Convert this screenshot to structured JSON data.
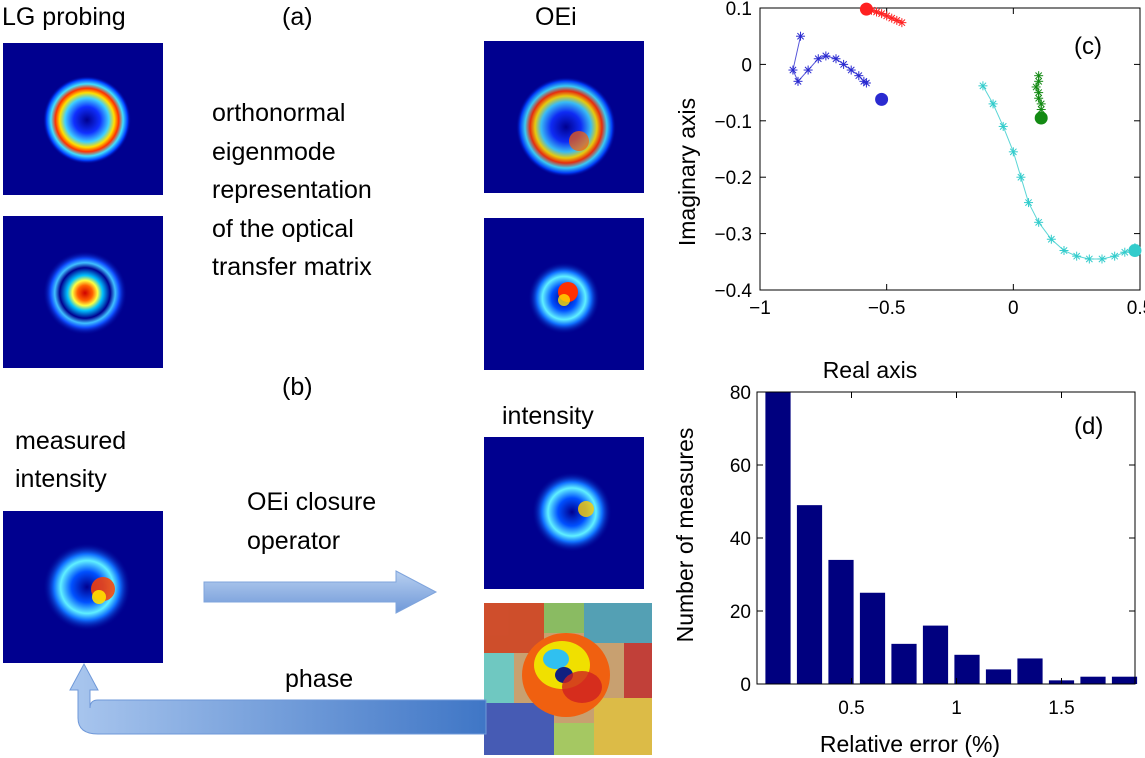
{
  "panel_a": {
    "tag": "(a)",
    "left_title": "LG probing",
    "right_title": "OEi",
    "description": [
      "orthonormal",
      "eigenmode",
      "representation",
      "of the optical",
      "transfer matrix"
    ]
  },
  "panel_b": {
    "tag": "(b)",
    "measured_label": [
      "measured",
      "intensity"
    ],
    "operator_label": [
      "OEi closure",
      "operator"
    ],
    "intensity_label": "intensity",
    "phase_label": "phase"
  },
  "chart_data": [
    {
      "panel": "(c)",
      "type": "scatter",
      "xlabel": "Real axis",
      "ylabel": "Imaginary axis",
      "xlim": [
        -1,
        0.5
      ],
      "ylim": [
        -0.4,
        0.1
      ],
      "xticks": [
        "−1",
        "−0.5",
        "0",
        "0.5"
      ],
      "yticks": [
        "0.1",
        "0",
        "−0.1",
        "−0.2",
        "−0.3",
        "−0.4"
      ],
      "series": [
        {
          "name": "red",
          "color": "#ff2020",
          "points": [
            [
              -0.58,
              0.098
            ],
            [
              -0.56,
              0.096
            ],
            [
              -0.54,
              0.093
            ],
            [
              -0.52,
              0.09
            ],
            [
              -0.5,
              0.086
            ],
            [
              -0.48,
              0.082
            ],
            [
              -0.46,
              0.078
            ],
            [
              -0.44,
              0.074
            ]
          ],
          "end_point": [
            -0.58,
            0.098
          ]
        },
        {
          "name": "blue",
          "color": "#2a2ad0",
          "points": [
            [
              -0.84,
              0.05
            ],
            [
              -0.87,
              -0.01
            ],
            [
              -0.85,
              -0.03
            ],
            [
              -0.81,
              -0.01
            ],
            [
              -0.77,
              0.01
            ],
            [
              -0.74,
              0.015
            ],
            [
              -0.7,
              0.01
            ],
            [
              -0.67,
              0.0
            ],
            [
              -0.64,
              -0.01
            ],
            [
              -0.61,
              -0.02
            ],
            [
              -0.59,
              -0.03
            ],
            [
              -0.58,
              -0.033
            ]
          ],
          "end_point": [
            -0.52,
            -0.062
          ]
        },
        {
          "name": "green",
          "color": "#138a13",
          "points": [
            [
              0.1,
              -0.02
            ],
            [
              0.1,
              -0.03
            ],
            [
              0.09,
              -0.04
            ],
            [
              0.1,
              -0.05
            ],
            [
              0.1,
              -0.06
            ],
            [
              0.11,
              -0.07
            ],
            [
              0.11,
              -0.08
            ]
          ],
          "end_point": [
            0.11,
            -0.095
          ]
        },
        {
          "name": "cyan",
          "color": "#33cccc",
          "points": [
            [
              -0.12,
              -0.038
            ],
            [
              -0.08,
              -0.07
            ],
            [
              -0.04,
              -0.11
            ],
            [
              0.0,
              -0.155
            ],
            [
              0.03,
              -0.2
            ],
            [
              0.06,
              -0.245
            ],
            [
              0.1,
              -0.28
            ],
            [
              0.15,
              -0.31
            ],
            [
              0.2,
              -0.33
            ],
            [
              0.25,
              -0.34
            ],
            [
              0.3,
              -0.345
            ],
            [
              0.35,
              -0.345
            ],
            [
              0.4,
              -0.34
            ],
            [
              0.44,
              -0.333
            ],
            [
              0.48,
              -0.325
            ]
          ],
          "end_point": [
            0.48,
            -0.33
          ]
        }
      ]
    },
    {
      "panel": "(d)",
      "type": "bar",
      "xlabel": "Relative error (%)",
      "ylabel": "Number of measures",
      "xlim": [
        0.05,
        1.85
      ],
      "ylim": [
        0,
        80
      ],
      "xticks": [
        "0.5",
        "1",
        "1.5"
      ],
      "yticks": [
        "0",
        "20",
        "40",
        "60",
        "80"
      ],
      "bar_centers": [
        0.15,
        0.3,
        0.45,
        0.6,
        0.75,
        0.9,
        1.05,
        1.2,
        1.35,
        1.5,
        1.65,
        1.8
      ],
      "values": [
        80,
        49,
        34,
        25,
        11,
        16,
        8,
        4,
        7,
        1,
        2,
        2
      ],
      "color": "#00007f"
    }
  ]
}
